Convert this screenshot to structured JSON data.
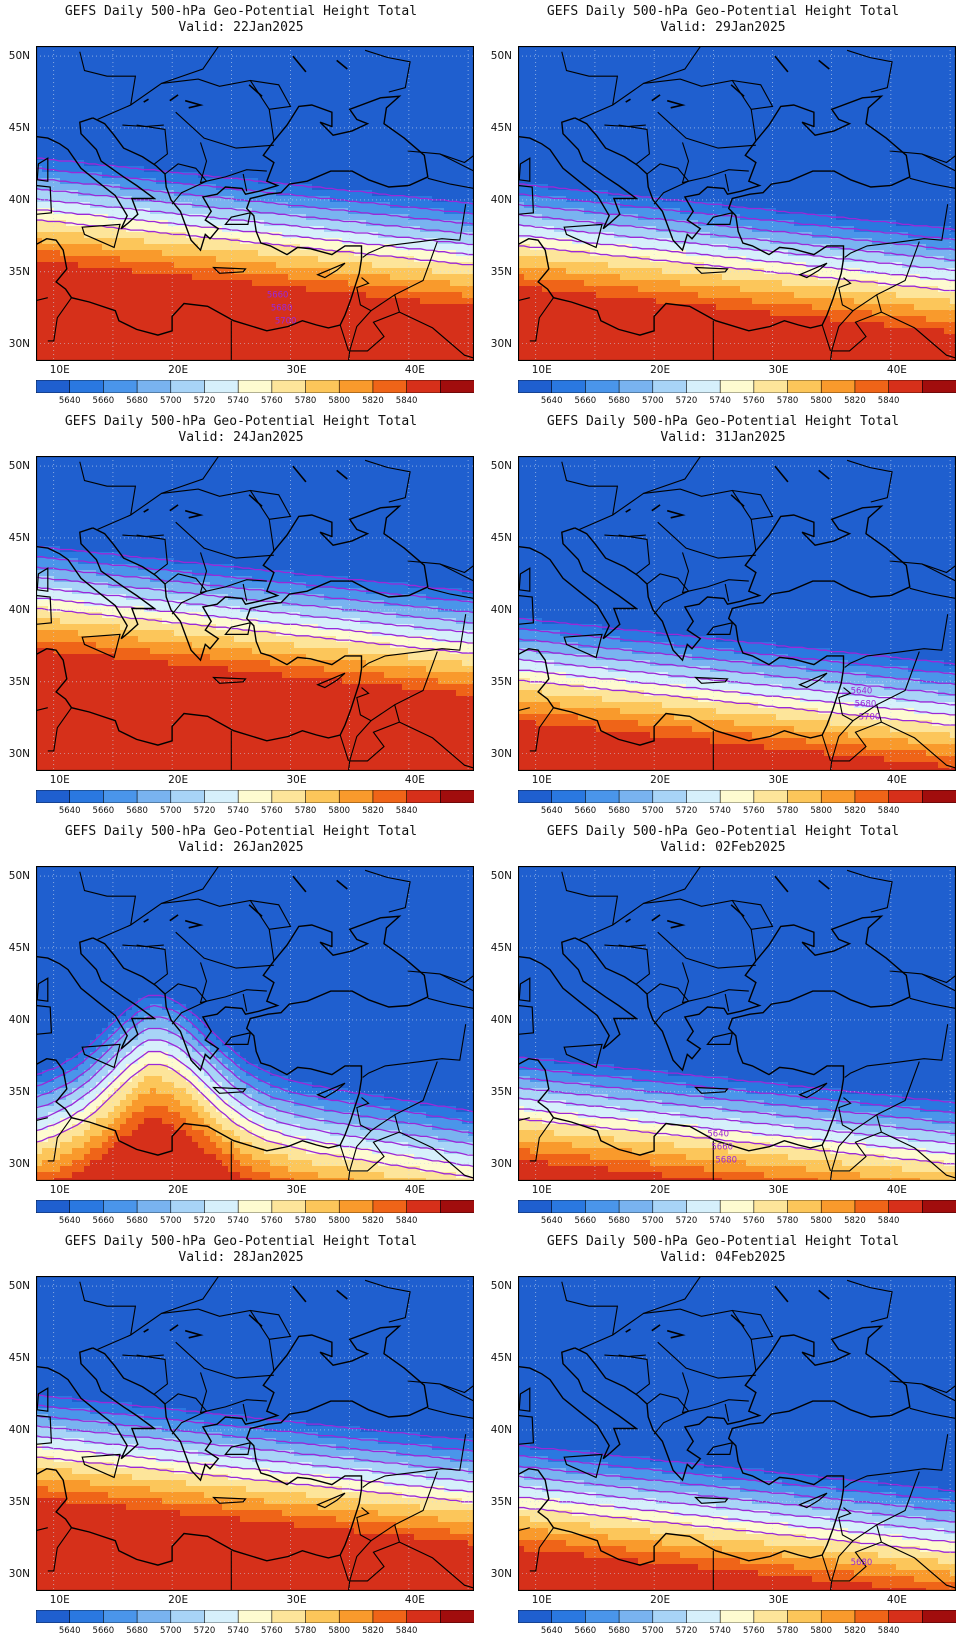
{
  "title_line1": "GEFS Daily 500-hPa Geo-Potential Height Total",
  "panels": [
    {
      "valid": "Valid: 22Jan2025",
      "shift": 3.0,
      "ridge": "none",
      "contour_labels": [
        "5660",
        "5680",
        "5700"
      ]
    },
    {
      "valid": "Valid: 29Jan2025",
      "shift": 1.2,
      "ridge": "none",
      "contour_labels": []
    },
    {
      "valid": "Valid: 24Jan2025",
      "shift": 4.5,
      "ridge": "none",
      "contour_labels": []
    },
    {
      "valid": "Valid: 31Jan2025",
      "shift": -0.5,
      "ridge": "none",
      "contour_labels": [
        "5640",
        "5680",
        "5700"
      ]
    },
    {
      "valid": "Valid: 26Jan2025",
      "shift": 0.0,
      "ridge": "strong",
      "contour_labels": []
    },
    {
      "valid": "Valid: 02Feb2025",
      "shift": -2.5,
      "ridge": "none",
      "contour_labels": [
        "5640",
        "5660",
        "5680"
      ]
    },
    {
      "valid": "Valid: 28Jan2025",
      "shift": 2.5,
      "ridge": "none",
      "contour_labels": []
    },
    {
      "valid": "Valid: 04Feb2025",
      "shift": -1.0,
      "ridge": "none",
      "contour_labels": [
        "5680"
      ]
    }
  ],
  "map": {
    "lon_range": [
      8.5,
      45.5
    ],
    "lat_range": [
      28.8,
      50.7
    ],
    "lon_ticks": [
      "10E",
      "20E",
      "30E",
      "40E"
    ],
    "lat_ticks": [
      "30N",
      "35N",
      "40N",
      "45N",
      "50N"
    ]
  },
  "colorbar": {
    "labels": [
      "5640",
      "5660",
      "5680",
      "5700",
      "5720",
      "5740",
      "5760",
      "5780",
      "5800",
      "5820",
      "5840"
    ],
    "colors": [
      "#1f5fcf",
      "#2a78e0",
      "#4a95ea",
      "#79b3f0",
      "#a8d4f7",
      "#d6f0fb",
      "#fefbd0",
      "#fde59a",
      "#fcc65a",
      "#f99a2c",
      "#ef6418",
      "#d6301a",
      "#a10d0d"
    ]
  },
  "contour_color": "#9b28d8"
}
